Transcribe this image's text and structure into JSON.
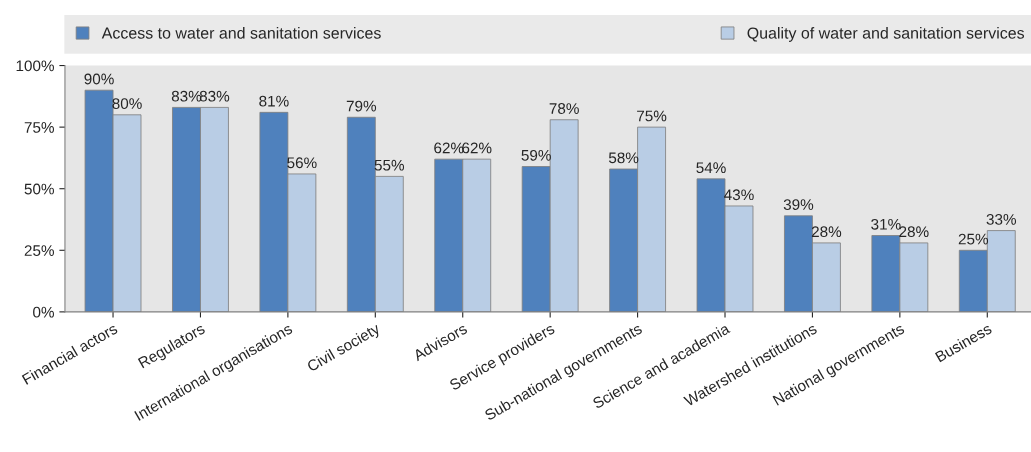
{
  "chart_data": {
    "type": "bar",
    "categories": [
      "Financial actors",
      "Regulators",
      "International organisations",
      "Civil society",
      "Advisors",
      "Service providers",
      "Sub-national governments",
      "Science and academia",
      "Watershed institutions",
      "National governments",
      "Business"
    ],
    "series": [
      {
        "name": "Access to water and sanitation services",
        "color": "#4f81bd",
        "values": [
          90,
          83,
          81,
          79,
          62,
          59,
          58,
          54,
          39,
          31,
          25
        ],
        "value_labels": [
          "90%",
          "83%",
          "81%",
          "79%",
          "62%",
          "59%",
          "58%",
          "54%",
          "39%",
          "31%",
          "25%"
        ]
      },
      {
        "name": "Quality of water and sanitation services",
        "color": "#b9cde5",
        "values": [
          80,
          83,
          56,
          55,
          62,
          78,
          75,
          43,
          28,
          28,
          33
        ],
        "value_labels": [
          "80%",
          "83%",
          "56%",
          "55%",
          "62%",
          "78%",
          "75%",
          "43%",
          "28%",
          "28%",
          "33%"
        ]
      }
    ],
    "ylim": [
      0,
      100
    ],
    "yticks": [
      {
        "value": 0,
        "label": "0%"
      },
      {
        "value": 25,
        "label": "25%"
      },
      {
        "value": 50,
        "label": "50%"
      },
      {
        "value": 75,
        "label": "75%"
      },
      {
        "value": 100,
        "label": "100%"
      }
    ],
    "legend": "top",
    "grid": false
  }
}
